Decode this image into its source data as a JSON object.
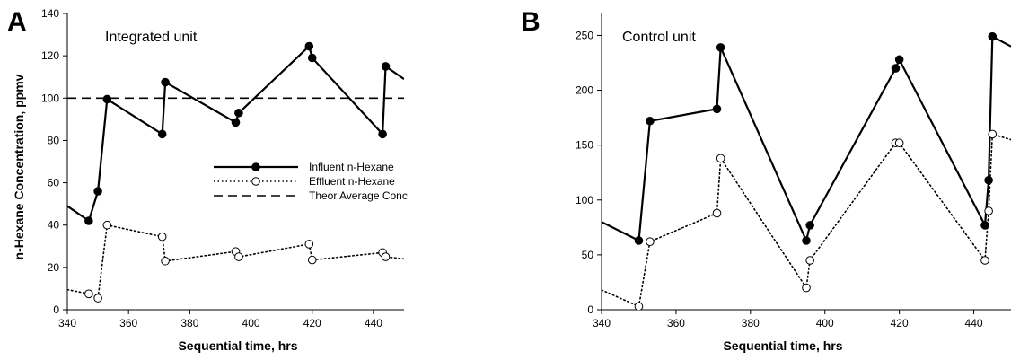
{
  "panels": [
    {
      "letter": "A",
      "inset_label": "Integrated unit",
      "xlabel": "Sequential time, hrs",
      "ylabel": "n-Hexane Concentration, ppmv",
      "x_ticks": [
        "340",
        "360",
        "380",
        "400",
        "420",
        "440"
      ],
      "y_ticks": [
        "0",
        "20",
        "40",
        "60",
        "80",
        "100",
        "120",
        "140"
      ]
    },
    {
      "letter": "B",
      "inset_label": "Control unit",
      "xlabel": "Sequential time, hrs",
      "ylabel": "",
      "x_ticks": [
        "340",
        "360",
        "380",
        "400",
        "420",
        "440"
      ],
      "y_ticks": [
        "0",
        "50",
        "100",
        "150",
        "200",
        "250"
      ]
    }
  ],
  "legend": {
    "influent": "Influent n-Hexane",
    "effluent": "Effluent n-Hexane",
    "theor": "Theor Average Conc"
  },
  "colors": {
    "ink": "#000000",
    "marker_open": "#ffffff"
  },
  "chart_data": [
    {
      "type": "line",
      "title": "Integrated unit",
      "xlabel": "Sequential time, hrs",
      "ylabel": "n-Hexane Concentration, ppmv",
      "xlim": [
        340,
        450
      ],
      "ylim": [
        0,
        140
      ],
      "grid": false,
      "legend_position": "center-right",
      "reference_line": {
        "name": "Theor Average Conc",
        "y": 100
      },
      "series": [
        {
          "name": "Influent n-Hexane",
          "style": "solid-filled",
          "x": [
            340,
            347,
            350,
            353,
            371,
            372,
            395,
            396,
            419,
            420,
            443,
            444,
            450
          ],
          "y": [
            49,
            42,
            56,
            99.5,
            83,
            107.5,
            88.5,
            93,
            124.5,
            119,
            83,
            115,
            109
          ],
          "markers": [
            false,
            true,
            true,
            true,
            true,
            true,
            true,
            true,
            true,
            true,
            true,
            true,
            false
          ]
        },
        {
          "name": "Effluent n-Hexane",
          "style": "dotted-open",
          "x": [
            340,
            347,
            350,
            353,
            371,
            372,
            395,
            396,
            419,
            420,
            443,
            444,
            450
          ],
          "y": [
            9.5,
            7.5,
            5.5,
            40,
            34.5,
            23,
            27.5,
            25,
            31,
            23.5,
            27,
            25,
            24
          ],
          "markers": [
            false,
            true,
            true,
            true,
            true,
            true,
            true,
            true,
            true,
            true,
            true,
            true,
            false
          ]
        }
      ]
    },
    {
      "type": "line",
      "title": "Control unit",
      "xlabel": "Sequential time, hrs",
      "ylabel": "",
      "xlim": [
        340,
        450
      ],
      "ylim": [
        0,
        270
      ],
      "grid": false,
      "series": [
        {
          "name": "Influent n-Hexane",
          "style": "solid-filled",
          "x": [
            340,
            350,
            353,
            371,
            372,
            395,
            396,
            419,
            420,
            443,
            444,
            445,
            450
          ],
          "y": [
            80,
            63,
            172,
            183,
            239,
            63,
            77,
            220,
            228,
            77,
            118,
            249,
            240
          ],
          "markers": [
            false,
            true,
            true,
            true,
            true,
            true,
            true,
            true,
            true,
            true,
            true,
            true,
            false
          ]
        },
        {
          "name": "Effluent n-Hexane",
          "style": "dotted-open",
          "x": [
            340,
            350,
            353,
            371,
            372,
            395,
            396,
            419,
            420,
            443,
            444,
            445,
            450
          ],
          "y": [
            18,
            3,
            62,
            88,
            138,
            20,
            45,
            152,
            152,
            45,
            90,
            160,
            155
          ],
          "markers": [
            false,
            true,
            true,
            true,
            true,
            true,
            true,
            true,
            true,
            true,
            true,
            true,
            false
          ]
        }
      ]
    }
  ]
}
